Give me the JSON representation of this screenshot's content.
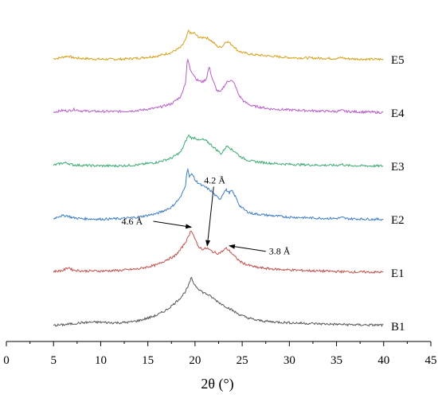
{
  "chart_data": {
    "type": "line",
    "xlabel": "2θ (°)",
    "ylabel": "",
    "xlim": [
      0,
      45
    ],
    "x_ticks": [
      0,
      5,
      10,
      15,
      20,
      25,
      30,
      35,
      40,
      45
    ],
    "grid": false,
    "series": [
      {
        "name": "E5",
        "color": "#D4A017",
        "offset": 5,
        "points": [
          [
            5,
            0.1
          ],
          [
            5.5,
            0.15
          ],
          [
            6.2,
            0.3
          ],
          [
            6.6,
            0.35
          ],
          [
            7,
            0.2
          ],
          [
            8,
            0.12
          ],
          [
            10,
            0.05
          ],
          [
            12,
            0.05
          ],
          [
            14,
            0.15
          ],
          [
            16,
            0.35
          ],
          [
            17.5,
            0.7
          ],
          [
            18.5,
            1.2
          ],
          [
            19.0,
            1.9
          ],
          [
            19.3,
            2.8
          ],
          [
            19.6,
            2.5
          ],
          [
            19.9,
            2.6
          ],
          [
            20.2,
            2.3
          ],
          [
            20.6,
            2.1
          ],
          [
            21.0,
            2.2
          ],
          [
            21.5,
            2.0
          ],
          [
            22.0,
            1.6
          ],
          [
            22.5,
            1.2
          ],
          [
            22.9,
            1.3
          ],
          [
            23.3,
            1.8
          ],
          [
            23.7,
            1.6
          ],
          [
            24.1,
            1.3
          ],
          [
            24.5,
            0.9
          ],
          [
            25,
            0.7
          ],
          [
            26,
            0.5
          ],
          [
            28,
            0.35
          ],
          [
            30,
            0.2
          ],
          [
            33,
            0.15
          ],
          [
            35,
            0.12
          ],
          [
            35.6,
            0.2
          ],
          [
            36,
            0.1
          ],
          [
            38,
            0.05
          ],
          [
            40,
            0.03
          ]
        ]
      },
      {
        "name": "E4",
        "color": "#B65CC8",
        "offset": 4,
        "points": [
          [
            5,
            0.1
          ],
          [
            6,
            0.25
          ],
          [
            6.5,
            0.2
          ],
          [
            7.2,
            0.35
          ],
          [
            8,
            0.2
          ],
          [
            10,
            0.15
          ],
          [
            12,
            0.15
          ],
          [
            14,
            0.25
          ],
          [
            16,
            0.5
          ],
          [
            17.5,
            0.9
          ],
          [
            18.5,
            1.6
          ],
          [
            19.0,
            3.0
          ],
          [
            19.2,
            5.3
          ],
          [
            19.5,
            4.2
          ],
          [
            19.8,
            3.8
          ],
          [
            20.2,
            3.2
          ],
          [
            20.8,
            3.0
          ],
          [
            21.2,
            3.3
          ],
          [
            21.5,
            4.5
          ],
          [
            21.8,
            3.4
          ],
          [
            22.3,
            2.2
          ],
          [
            22.7,
            2.0
          ],
          [
            23.0,
            2.5
          ],
          [
            23.4,
            3.0
          ],
          [
            23.8,
            3.2
          ],
          [
            24.2,
            2.8
          ],
          [
            24.6,
            1.8
          ],
          [
            25.2,
            1.1
          ],
          [
            26,
            0.7
          ],
          [
            28,
            0.4
          ],
          [
            30,
            0.3
          ],
          [
            33,
            0.2
          ],
          [
            35,
            0.15
          ],
          [
            35.6,
            0.25
          ],
          [
            36,
            0.15
          ],
          [
            38,
            0.1
          ],
          [
            40,
            0.05
          ]
        ]
      },
      {
        "name": "E3",
        "color": "#3DAA73",
        "offset": 3,
        "points": [
          [
            5,
            0.1
          ],
          [
            5.8,
            0.3
          ],
          [
            6.4,
            0.35
          ],
          [
            7,
            0.15
          ],
          [
            8,
            0.1
          ],
          [
            10,
            0.05
          ],
          [
            12,
            0.05
          ],
          [
            14,
            0.15
          ],
          [
            16,
            0.4
          ],
          [
            17.5,
            0.8
          ],
          [
            18.5,
            1.4
          ],
          [
            19.0,
            2.4
          ],
          [
            19.3,
            3.0
          ],
          [
            19.7,
            2.7
          ],
          [
            20.0,
            2.8
          ],
          [
            20.4,
            2.5
          ],
          [
            20.8,
            2.6
          ],
          [
            21.3,
            2.4
          ],
          [
            21.8,
            2.0
          ],
          [
            22.4,
            1.5
          ],
          [
            22.8,
            1.2
          ],
          [
            23.2,
            1.8
          ],
          [
            23.5,
            2.0
          ],
          [
            23.9,
            1.6
          ],
          [
            24.3,
            1.4
          ],
          [
            24.7,
            1.0
          ],
          [
            25.3,
            0.7
          ],
          [
            26,
            0.5
          ],
          [
            28,
            0.3
          ],
          [
            30,
            0.2
          ],
          [
            33,
            0.12
          ],
          [
            35,
            0.1
          ],
          [
            35.6,
            0.2
          ],
          [
            36,
            0.08
          ],
          [
            38,
            0.05
          ],
          [
            40,
            0.03
          ]
        ]
      },
      {
        "name": "E2",
        "color": "#3C7DC4",
        "offset": 2,
        "points": [
          [
            5,
            0.1
          ],
          [
            5.6,
            0.35
          ],
          [
            6.4,
            0.4
          ],
          [
            7,
            0.2
          ],
          [
            8,
            0.1
          ],
          [
            10,
            0.05
          ],
          [
            12,
            0.1
          ],
          [
            14,
            0.25
          ],
          [
            16,
            0.6
          ],
          [
            17.5,
            1.2
          ],
          [
            18.5,
            2.2
          ],
          [
            19.0,
            3.4
          ],
          [
            19.2,
            5.1
          ],
          [
            19.4,
            4.1
          ],
          [
            19.7,
            4.5
          ],
          [
            20.0,
            3.8
          ],
          [
            20.3,
            3.6
          ],
          [
            20.7,
            3.3
          ],
          [
            21.2,
            3.1
          ],
          [
            21.8,
            2.7
          ],
          [
            22.3,
            2.2
          ],
          [
            22.7,
            2.0
          ],
          [
            23.0,
            2.6
          ],
          [
            23.3,
            2.9
          ],
          [
            23.6,
            2.6
          ],
          [
            23.9,
            2.8
          ],
          [
            24.3,
            2.2
          ],
          [
            24.7,
            1.4
          ],
          [
            25.3,
            0.9
          ],
          [
            26,
            0.6
          ],
          [
            28,
            0.4
          ],
          [
            30,
            0.25
          ],
          [
            33,
            0.15
          ],
          [
            35,
            0.12
          ],
          [
            35.6,
            0.22
          ],
          [
            36,
            0.1
          ],
          [
            38,
            0.06
          ],
          [
            40,
            0.03
          ]
        ]
      },
      {
        "name": "E1",
        "color": "#C0504D",
        "offset": 1,
        "points": [
          [
            5,
            0.15
          ],
          [
            6,
            0.25
          ],
          [
            6.6,
            0.55
          ],
          [
            7,
            0.3
          ],
          [
            8,
            0.2
          ],
          [
            10,
            0.2
          ],
          [
            12,
            0.25
          ],
          [
            14,
            0.4
          ],
          [
            16,
            0.8
          ],
          [
            17,
            1.3
          ],
          [
            17.8,
            1.6
          ],
          [
            18.5,
            2.3
          ],
          [
            19.2,
            3.3
          ],
          [
            19.6,
            4.2
          ],
          [
            19.9,
            3.5
          ],
          [
            20.3,
            2.6
          ],
          [
            20.8,
            2.3
          ],
          [
            21.3,
            2.4
          ],
          [
            21.6,
            2.2
          ],
          [
            22.0,
            2.0
          ],
          [
            22.5,
            1.9
          ],
          [
            22.9,
            2.1
          ],
          [
            23.3,
            2.4
          ],
          [
            23.7,
            2.1
          ],
          [
            24.2,
            1.6
          ],
          [
            24.8,
            1.1
          ],
          [
            25.5,
            0.8
          ],
          [
            26.5,
            0.55
          ],
          [
            28,
            0.4
          ],
          [
            30,
            0.3
          ],
          [
            33,
            0.2
          ],
          [
            35,
            0.15
          ],
          [
            37,
            0.1
          ],
          [
            40,
            0.08
          ]
        ]
      },
      {
        "name": "B1",
        "color": "#555555",
        "offset": 0,
        "points": [
          [
            5,
            0.1
          ],
          [
            6,
            0.15
          ],
          [
            7,
            0.25
          ],
          [
            8,
            0.35
          ],
          [
            9,
            0.4
          ],
          [
            10,
            0.4
          ],
          [
            11,
            0.35
          ],
          [
            12,
            0.35
          ],
          [
            13,
            0.4
          ],
          [
            14,
            0.55
          ],
          [
            15,
            0.8
          ],
          [
            16,
            1.1
          ],
          [
            17,
            1.6
          ],
          [
            17.8,
            2.2
          ],
          [
            18.5,
            2.8
          ],
          [
            19.0,
            3.4
          ],
          [
            19.3,
            3.9
          ],
          [
            19.6,
            4.7
          ],
          [
            19.9,
            4.1
          ],
          [
            20.3,
            3.7
          ],
          [
            20.8,
            3.3
          ],
          [
            21.3,
            3.1
          ],
          [
            21.8,
            2.8
          ],
          [
            22.4,
            2.4
          ],
          [
            22.9,
            2.1
          ],
          [
            23.3,
            1.9
          ],
          [
            23.7,
            1.7
          ],
          [
            24.2,
            1.4
          ],
          [
            24.8,
            1.1
          ],
          [
            25.5,
            0.85
          ],
          [
            26.5,
            0.6
          ],
          [
            28,
            0.45
          ],
          [
            30,
            0.35
          ],
          [
            33,
            0.25
          ],
          [
            35,
            0.2
          ],
          [
            37,
            0.15
          ],
          [
            40,
            0.12
          ]
        ]
      }
    ],
    "annotations": [
      {
        "label": "4.6 Å",
        "series": "E1",
        "x": 19.6,
        "text_x": 12.2,
        "text_offset": 0.8,
        "side": "left"
      },
      {
        "label": "4.2 Å",
        "series": "E1",
        "x": 21.3,
        "text_x": 21.3,
        "text_offset": 5.8,
        "side": "above"
      },
      {
        "label": "3.8 Å",
        "series": "E1",
        "x": 23.3,
        "text_x": 27.5,
        "text_offset": -0.3,
        "side": "right"
      }
    ]
  }
}
